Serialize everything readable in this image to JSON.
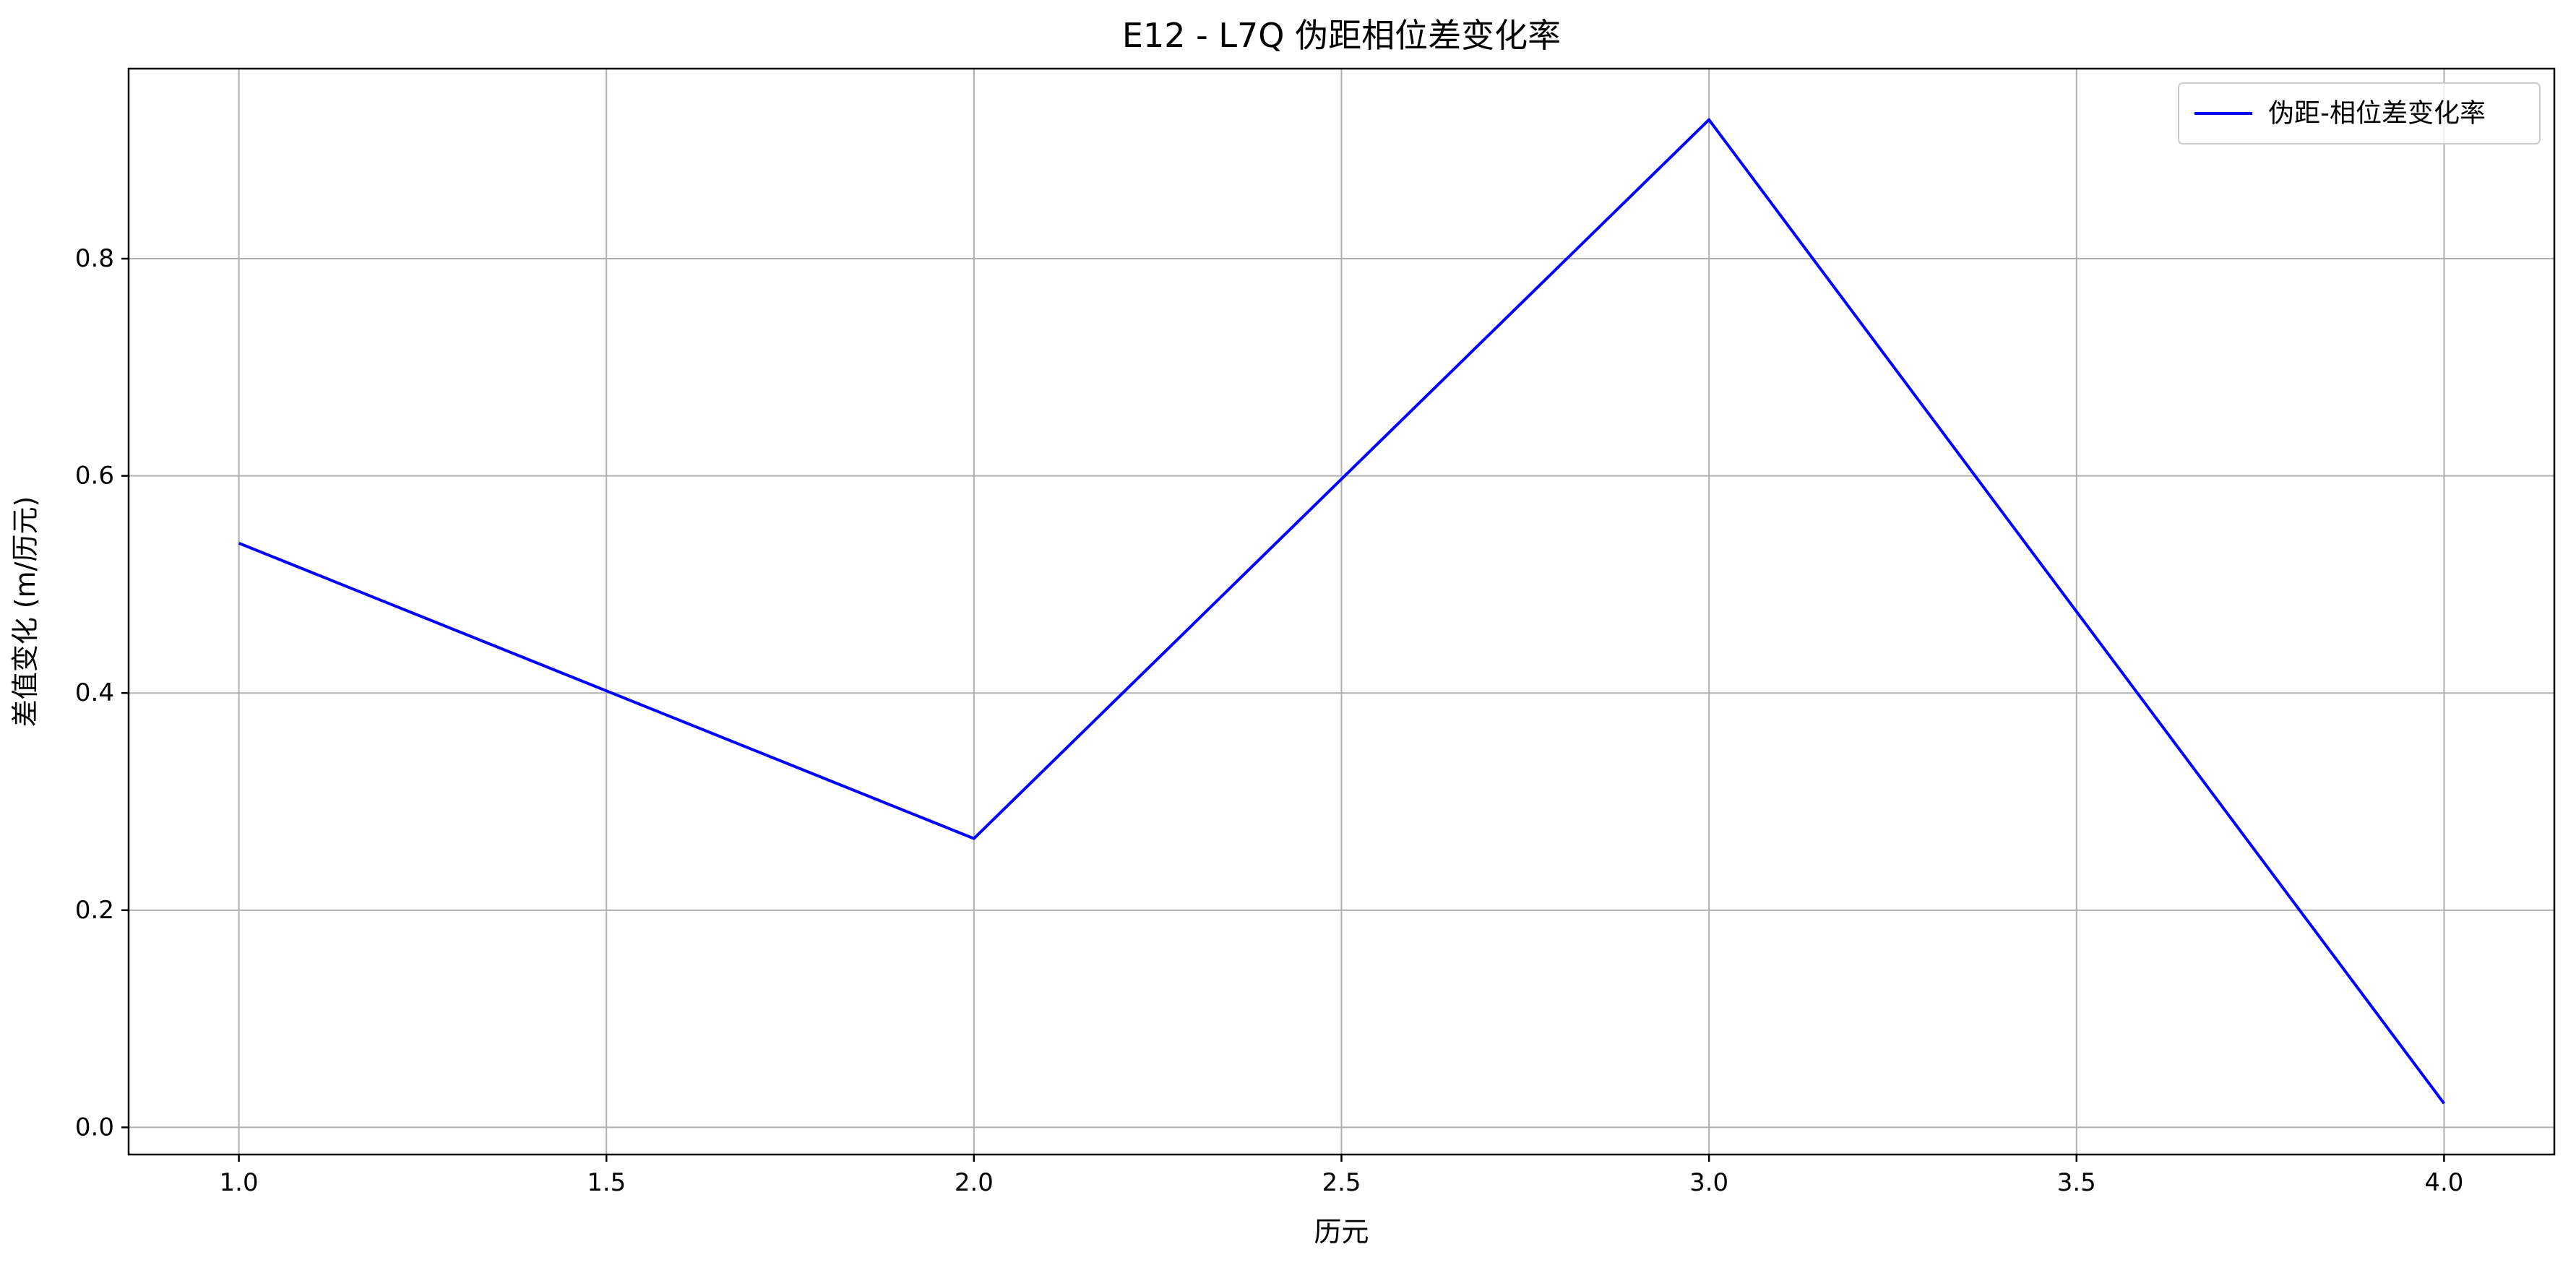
{
  "chart_data": {
    "type": "line",
    "title": "E12 - L7Q 伪距相位差变化率",
    "xlabel": "历元",
    "ylabel": "差值变化 (m/历元)",
    "x": [
      1.0,
      2.0,
      3.0,
      4.0
    ],
    "series": [
      {
        "name": "伪距-相位差变化率",
        "values": [
          0.538,
          0.266,
          0.928,
          0.022
        ],
        "color": "#0000ff"
      }
    ],
    "xlim": [
      0.85,
      4.15
    ],
    "ylim": [
      -0.025,
      0.975
    ],
    "xticks": [
      1.0,
      1.5,
      2.0,
      2.5,
      3.0,
      3.5,
      4.0
    ],
    "xtick_labels": [
      "1.0",
      "1.5",
      "2.0",
      "2.5",
      "3.0",
      "3.5",
      "4.0"
    ],
    "yticks": [
      0.0,
      0.2,
      0.4,
      0.6,
      0.8
    ],
    "ytick_labels": [
      "0.0",
      "0.2",
      "0.4",
      "0.6",
      "0.8"
    ],
    "grid": true,
    "grid_color": "#b0b0b0",
    "legend_position": "upper-right"
  }
}
